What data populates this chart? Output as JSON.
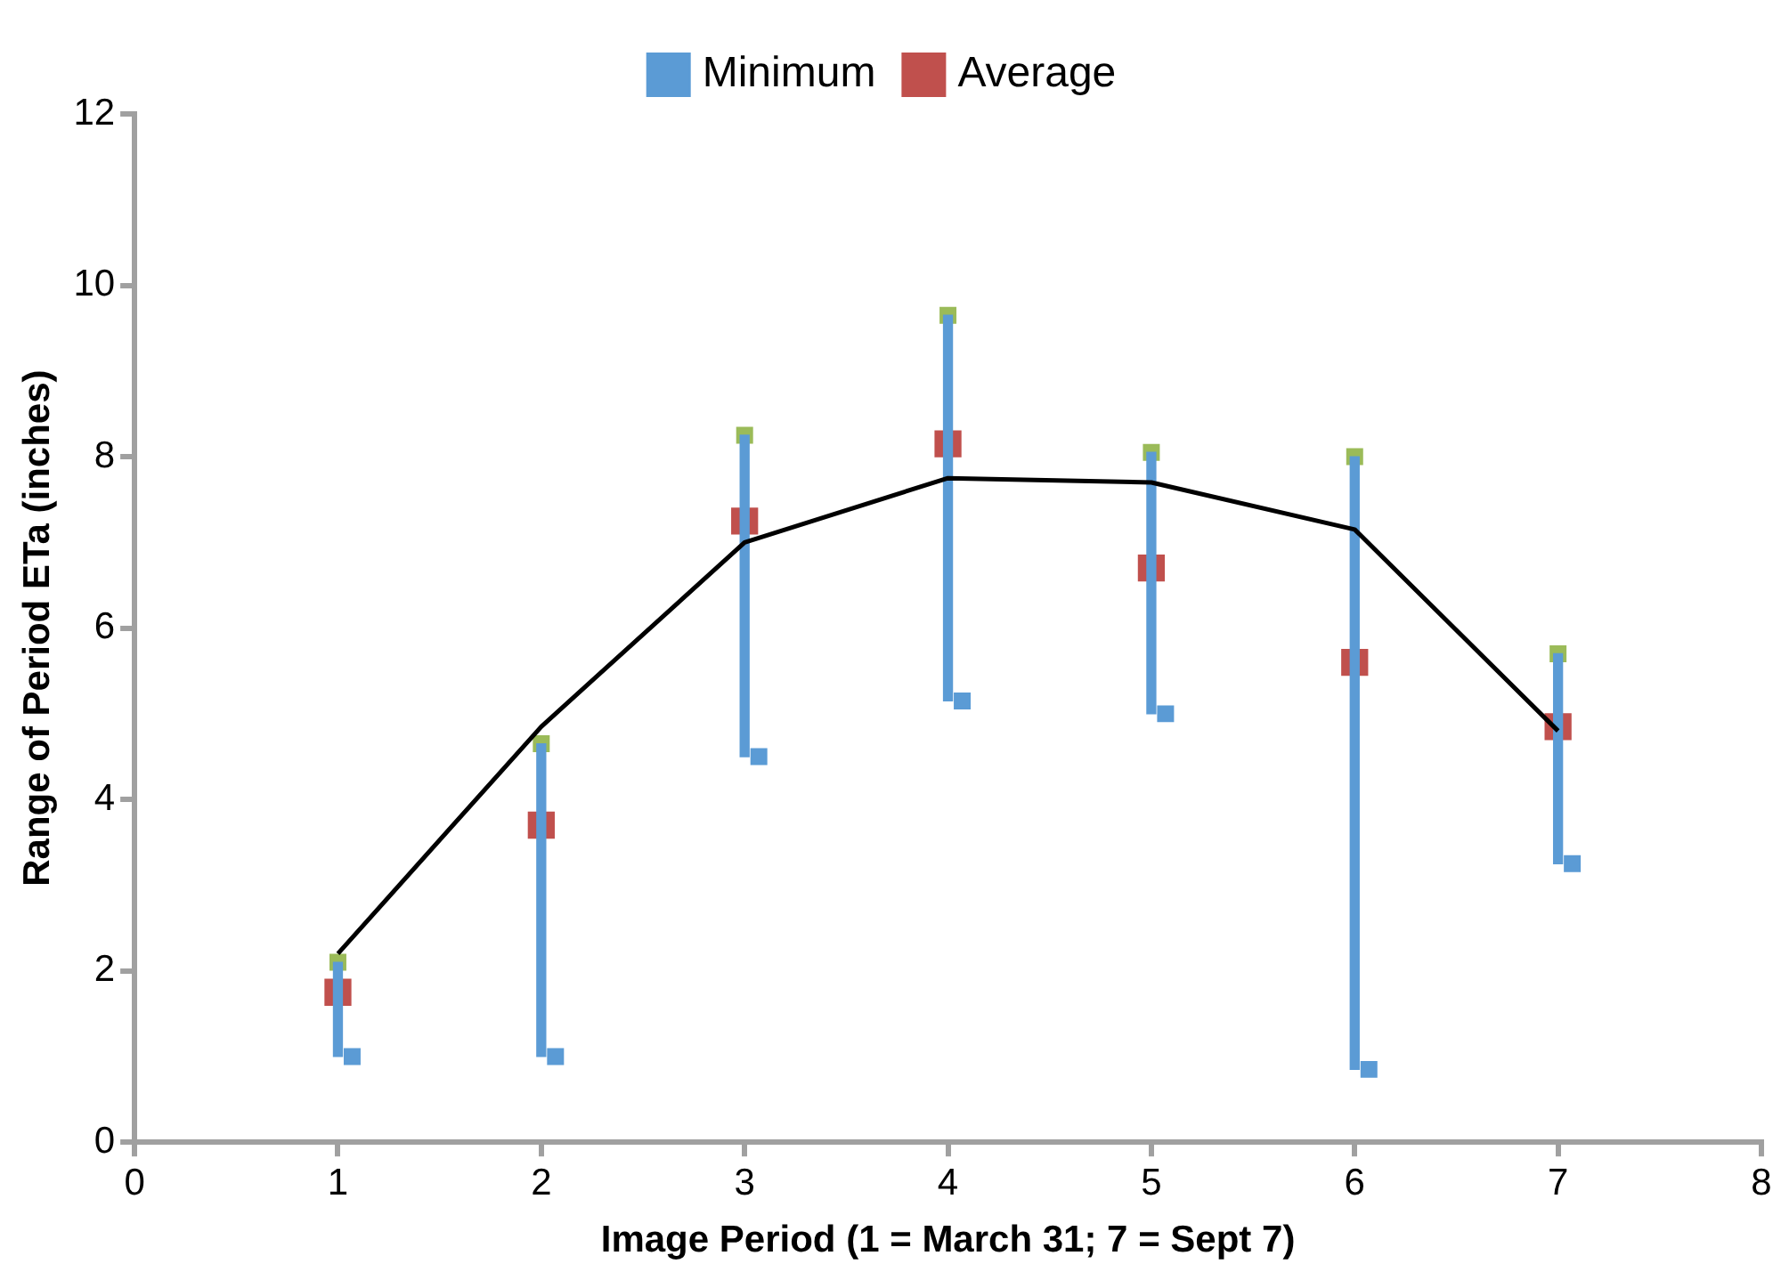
{
  "chart_data": {
    "type": "scatter",
    "xlabel": "Image Period (1 = March 31; 7 = Sept 7)",
    "ylabel": "Range of Period ETa (inches)",
    "x": [
      1,
      2,
      3,
      4,
      5,
      6,
      7
    ],
    "series": [
      {
        "type": "bar",
        "color": "#5b9bd5",
        "base": [
          1.0,
          1.0,
          4.5,
          5.15,
          5.0,
          0.85,
          3.25
        ],
        "values": [
          1.1,
          3.65,
          3.75,
          4.5,
          3.05,
          7.15,
          2.45
        ]
      },
      {
        "type": "line",
        "color": "#000000",
        "marker": "none",
        "values": [
          2.2,
          4.85,
          7.0,
          7.75,
          7.7,
          7.15,
          4.8
        ]
      },
      {
        "type": "scatter",
        "color": "#9bbb59",
        "marker": "square",
        "values": [
          2.1,
          4.65,
          8.25,
          9.65,
          8.05,
          8.0,
          5.7
        ]
      },
      {
        "type": "scatter",
        "name": "Minimum",
        "color": "#5b9bd5",
        "marker": "square",
        "x": [
          1.07,
          2.07,
          3.07,
          4.07,
          5.07,
          6.07,
          7.07
        ],
        "values": [
          1.0,
          1.0,
          4.5,
          5.15,
          5.0,
          0.85,
          3.25
        ]
      },
      {
        "name": "Average",
        "color": "#c0504d",
        "marker": "square",
        "values": [
          1.75,
          3.7,
          7.25,
          8.15,
          6.7,
          5.6,
          4.85
        ]
      }
    ],
    "xlim": [
      0,
      8
    ],
    "xticks": [
      0,
      1,
      2,
      3,
      4,
      5,
      6,
      7,
      8
    ],
    "ylim": [
      0,
      12
    ],
    "yticks": [
      0,
      2,
      4,
      6,
      8,
      10,
      12
    ],
    "grid": false,
    "legend": "top"
  }
}
